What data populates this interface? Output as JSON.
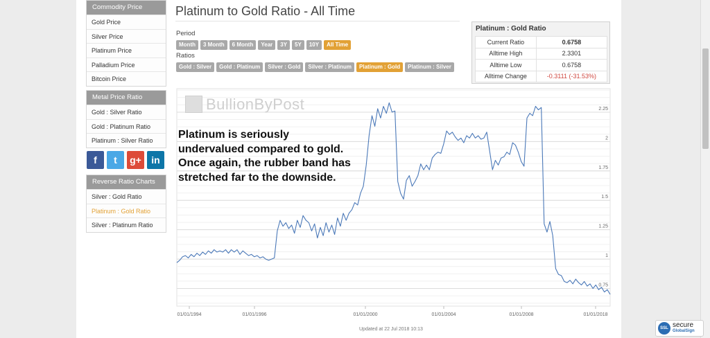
{
  "sidebar": {
    "commodity": {
      "heading": "Commodity Price Charts",
      "items": [
        "Gold Price",
        "Silver Price",
        "Platinum Price",
        "Palladium Price",
        "Bitcoin Price"
      ]
    },
    "metal_ratio": {
      "heading": "Metal Price Ratio Charts",
      "items": [
        "Gold : Silver Ratio",
        "Gold : Platinum Ratio",
        "Platinum : Silver Ratio"
      ]
    },
    "social": [
      "f",
      "t",
      "g+",
      "in"
    ],
    "reverse_ratio": {
      "heading": "Reverse Ratio Charts",
      "items": [
        "Silver : Gold Ratio",
        "Platinum : Gold Ratio",
        "Silver : Platinum Ratio"
      ],
      "active_index": 1
    }
  },
  "page": {
    "title": "Platinum to Gold Ratio - All Time",
    "period_label": "Period",
    "period_buttons": [
      "Month",
      "3 Month",
      "6 Month",
      "Year",
      "3Y",
      "5Y",
      "10Y",
      "All Time"
    ],
    "period_active": 7,
    "ratios_label": "Ratios",
    "ratio_buttons": [
      "Gold : Silver",
      "Gold : Platinum",
      "Silver : Gold",
      "Silver : Platinum",
      "Platinum : Gold",
      "Platinum : Silver"
    ],
    "ratio_active": 4
  },
  "stats": {
    "heading": "Platinum : Gold Ratio",
    "rows": [
      {
        "label": "Current Ratio",
        "value": "0.6758"
      },
      {
        "label": "Alltime High",
        "value": "2.3301"
      },
      {
        "label": "Alltime Low",
        "value": "0.6758"
      },
      {
        "label": "Alltime Change",
        "value": "-0.3111 (-31.53%)"
      }
    ]
  },
  "watermark": "BullionByPost",
  "annotation": [
    "Platinum is seriously",
    "undervalued compared to gold.",
    "Once again, the rubber band has",
    "stretched far to the downside."
  ],
  "updated": "Updated at 22 Jul 2018 10:13",
  "secure_seal": {
    "line1": "secure",
    "line2": "GlobalSign"
  },
  "colors": {
    "line": "#4a78b8",
    "accent": "#e2a135",
    "button": "#a8a8a8",
    "panel_head": "#9a9a9a",
    "negative": "#d0473f"
  },
  "chart_data": {
    "type": "line",
    "title": "",
    "xlabel": "",
    "ylabel": "",
    "x_ticks": [
      "01/01/1994",
      "01/01/1996",
      "01/01/2000",
      "01/01/2004",
      "01/01/2008",
      "01/01/2018"
    ],
    "y_ticks": [
      0.75,
      1,
      1.25,
      1.5,
      1.75,
      2,
      2.25
    ],
    "ylim": [
      0.6,
      2.45
    ],
    "grid": true,
    "series": [
      {
        "values": [
          0.97,
          0.99,
          1.02,
          1.03,
          1.01,
          1.04,
          1.02,
          1.05,
          1.03,
          1.06,
          1.04,
          1.07,
          1.05,
          1.08,
          1.06,
          1.07,
          1.06,
          1.08,
          1.05,
          1.08,
          1.06,
          1.08,
          1.04,
          1.07,
          1.05,
          1.03,
          1.04,
          1.02,
          1.03,
          1.01,
          1.02,
          1.0,
          0.99,
          1.0,
          1.01,
          1.24,
          1.33,
          1.28,
          1.31,
          1.26,
          1.29,
          1.22,
          1.33,
          1.27,
          1.37,
          1.33,
          1.31,
          1.24,
          1.3,
          1.18,
          1.27,
          1.2,
          1.31,
          1.23,
          1.29,
          1.21,
          1.35,
          1.28,
          1.39,
          1.33,
          1.39,
          1.42,
          1.48,
          1.46,
          1.56,
          1.62,
          1.8,
          2.05,
          2.22,
          2.13,
          2.28,
          2.2,
          2.3,
          2.24,
          2.33,
          2.25,
          2.26,
          1.66,
          1.56,
          1.51,
          1.67,
          1.71,
          1.62,
          1.66,
          1.71,
          1.81,
          1.76,
          1.8,
          1.76,
          1.86,
          1.89,
          1.91,
          1.9,
          1.98,
          2.09,
          2.06,
          2.08,
          2.04,
          2.01,
          2.03,
          1.99,
          2.05,
          2.03,
          2.07,
          2.03,
          2.05,
          2.02,
          2.03,
          2.08,
          1.92,
          1.76,
          1.84,
          1.8,
          1.86,
          1.87,
          1.91,
          1.89,
          1.99,
          1.97,
          1.91,
          1.83,
          1.79,
          2.2,
          2.24,
          2.22,
          2.3,
          2.27,
          2.29,
          1.3,
          1.23,
          1.32,
          1.2,
          0.92,
          0.87,
          0.86,
          0.81,
          0.8,
          0.82,
          0.79,
          0.83,
          0.8,
          0.78,
          0.81,
          0.77,
          0.79,
          0.75,
          0.78,
          0.74,
          0.76,
          0.72,
          0.74,
          0.7
        ]
      }
    ]
  }
}
